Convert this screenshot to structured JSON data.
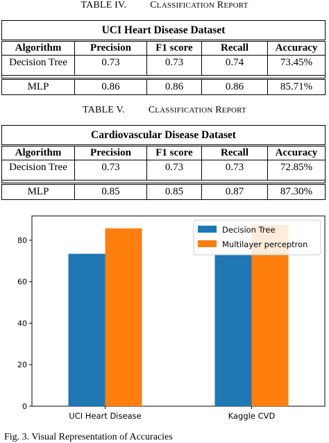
{
  "table4": {
    "number": "TABLE IV.",
    "title_first": "C",
    "title_rest_1": "LASSIFICATION",
    "title_R": "R",
    "title_rest_2": "EPORT",
    "dataset": "UCI Heart Disease Dataset",
    "headers": [
      "Algorithm",
      "Precision",
      "F1 score",
      "Recall",
      "Accuracy"
    ],
    "rows": [
      [
        "Decision Tree",
        "0.73",
        "0.73",
        "0.74",
        "73.45%"
      ],
      [
        "MLP",
        "0.86",
        "0.86",
        "0.86",
        "85.71%"
      ]
    ]
  },
  "table5": {
    "number": "TABLE V.",
    "title_first": "C",
    "title_rest_1": "LASSIFICATION",
    "title_R": "R",
    "title_rest_2": "EPORT",
    "dataset": "Cardiovascular Disease Dataset",
    "headers": [
      "Algorithm",
      "Precision",
      "F1 score",
      "Recall",
      "Accuracy"
    ],
    "rows": [
      [
        "Decision Tree",
        "0.73",
        "0.73",
        "0.73",
        "72.85%"
      ],
      [
        "MLP",
        "0.85",
        "0.85",
        "0.87",
        "87.30%"
      ]
    ]
  },
  "chart_data": {
    "type": "bar",
    "categories": [
      "UCI Heart Disease",
      "Kaggle CVD"
    ],
    "series": [
      {
        "name": "Decision Tree",
        "values": [
          73.45,
          72.85
        ],
        "color": "#1f77b4"
      },
      {
        "name": "Multilayer perceptron",
        "values": [
          85.71,
          87.3
        ],
        "color": "#ff7f0e"
      }
    ],
    "yticks": [
      0,
      20,
      40,
      60,
      80
    ],
    "ylim": [
      0,
      91.7
    ],
    "legend": "top-right",
    "grid": false
  },
  "figure_caption": "Fig. 3.   Visual Representation of Accuracies"
}
